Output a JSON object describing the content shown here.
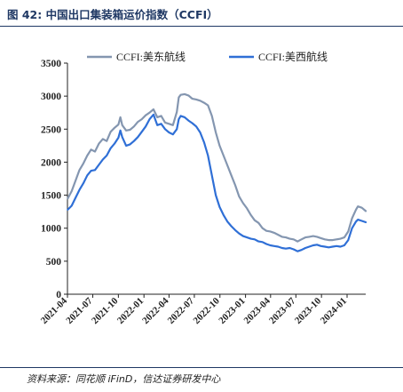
{
  "figure": {
    "title": "图 42:  中国出口集装箱运价指数（CCFI）",
    "source": "资料来源：同花顺 iFinD，信达证券研发中心"
  },
  "chart_data": {
    "type": "line",
    "title": "",
    "xlabel": "",
    "ylabel": "",
    "ylim": [
      0,
      3500
    ],
    "yticks": [
      0,
      500,
      1000,
      1500,
      2000,
      2500,
      3000,
      3500
    ],
    "xlim": [
      "2021-04-01",
      "2024-03-08"
    ],
    "xtick_labels": [
      "2021-04",
      "2021-07",
      "2021-10",
      "2022-01",
      "2022-04",
      "2022-07",
      "2022-10",
      "2023-01",
      "2023-04",
      "2023-07",
      "2023-10",
      "2024-01"
    ],
    "grid": false,
    "legend_position": "top",
    "series": [
      {
        "name": "CCFI:美东航线",
        "color": "#8496b0",
        "points": [
          [
            "2021-04-02",
            1450
          ],
          [
            "2021-04-16",
            1560
          ],
          [
            "2021-04-30",
            1720
          ],
          [
            "2021-05-14",
            1880
          ],
          [
            "2021-05-28",
            1980
          ],
          [
            "2021-06-11",
            2100
          ],
          [
            "2021-06-25",
            2190
          ],
          [
            "2021-07-09",
            2160
          ],
          [
            "2021-07-23",
            2280
          ],
          [
            "2021-08-06",
            2350
          ],
          [
            "2021-08-20",
            2320
          ],
          [
            "2021-09-03",
            2460
          ],
          [
            "2021-09-17",
            2520
          ],
          [
            "2021-10-01",
            2570
          ],
          [
            "2021-10-08",
            2680
          ],
          [
            "2021-10-15",
            2560
          ],
          [
            "2021-10-29",
            2480
          ],
          [
            "2021-11-12",
            2490
          ],
          [
            "2021-11-26",
            2540
          ],
          [
            "2021-12-10",
            2610
          ],
          [
            "2021-12-24",
            2650
          ],
          [
            "2022-01-07",
            2710
          ],
          [
            "2022-01-21",
            2750
          ],
          [
            "2022-02-04",
            2800
          ],
          [
            "2022-02-18",
            2680
          ],
          [
            "2022-03-04",
            2700
          ],
          [
            "2022-03-18",
            2600
          ],
          [
            "2022-04-01",
            2580
          ],
          [
            "2022-04-15",
            2560
          ],
          [
            "2022-04-29",
            2760
          ],
          [
            "2022-05-06",
            2980
          ],
          [
            "2022-05-13",
            3020
          ],
          [
            "2022-05-27",
            3030
          ],
          [
            "2022-06-10",
            3010
          ],
          [
            "2022-06-24",
            2960
          ],
          [
            "2022-07-08",
            2950
          ],
          [
            "2022-07-22",
            2930
          ],
          [
            "2022-08-05",
            2900
          ],
          [
            "2022-08-19",
            2860
          ],
          [
            "2022-09-02",
            2700
          ],
          [
            "2022-09-16",
            2450
          ],
          [
            "2022-09-30",
            2250
          ],
          [
            "2022-10-14",
            2100
          ],
          [
            "2022-10-28",
            1950
          ],
          [
            "2022-11-11",
            1800
          ],
          [
            "2022-11-25",
            1650
          ],
          [
            "2022-12-09",
            1480
          ],
          [
            "2022-12-23",
            1380
          ],
          [
            "2023-01-06",
            1300
          ],
          [
            "2023-01-20",
            1200
          ],
          [
            "2023-02-03",
            1120
          ],
          [
            "2023-02-17",
            1080
          ],
          [
            "2023-03-03",
            1000
          ],
          [
            "2023-03-17",
            960
          ],
          [
            "2023-03-31",
            950
          ],
          [
            "2023-04-14",
            930
          ],
          [
            "2023-04-28",
            900
          ],
          [
            "2023-05-12",
            870
          ],
          [
            "2023-05-26",
            860
          ],
          [
            "2023-06-09",
            840
          ],
          [
            "2023-06-23",
            830
          ],
          [
            "2023-07-07",
            800
          ],
          [
            "2023-07-21",
            830
          ],
          [
            "2023-08-04",
            860
          ],
          [
            "2023-08-18",
            870
          ],
          [
            "2023-09-01",
            880
          ],
          [
            "2023-09-15",
            870
          ],
          [
            "2023-09-29",
            850
          ],
          [
            "2023-10-13",
            830
          ],
          [
            "2023-10-27",
            820
          ],
          [
            "2023-11-10",
            820
          ],
          [
            "2023-11-24",
            830
          ],
          [
            "2023-12-08",
            840
          ],
          [
            "2023-12-22",
            860
          ],
          [
            "2024-01-05",
            950
          ],
          [
            "2024-01-19",
            1150
          ],
          [
            "2024-02-02",
            1280
          ],
          [
            "2024-02-09",
            1330
          ],
          [
            "2024-02-23",
            1310
          ],
          [
            "2024-03-08",
            1260
          ]
        ]
      },
      {
        "name": "CCFI:美西航线",
        "color": "#2f6fd6",
        "points": [
          [
            "2021-04-02",
            1280
          ],
          [
            "2021-04-16",
            1340
          ],
          [
            "2021-04-30",
            1460
          ],
          [
            "2021-05-14",
            1580
          ],
          [
            "2021-05-28",
            1680
          ],
          [
            "2021-06-11",
            1800
          ],
          [
            "2021-06-25",
            1870
          ],
          [
            "2021-07-09",
            1880
          ],
          [
            "2021-07-23",
            1960
          ],
          [
            "2021-08-06",
            2040
          ],
          [
            "2021-08-20",
            2100
          ],
          [
            "2021-09-03",
            2210
          ],
          [
            "2021-09-17",
            2280
          ],
          [
            "2021-10-01",
            2370
          ],
          [
            "2021-10-08",
            2480
          ],
          [
            "2021-10-15",
            2380
          ],
          [
            "2021-10-29",
            2250
          ],
          [
            "2021-11-12",
            2270
          ],
          [
            "2021-11-26",
            2320
          ],
          [
            "2021-12-10",
            2380
          ],
          [
            "2021-12-24",
            2460
          ],
          [
            "2022-01-07",
            2540
          ],
          [
            "2022-01-21",
            2650
          ],
          [
            "2022-02-04",
            2720
          ],
          [
            "2022-02-18",
            2560
          ],
          [
            "2022-03-04",
            2580
          ],
          [
            "2022-03-18",
            2500
          ],
          [
            "2022-04-01",
            2450
          ],
          [
            "2022-04-15",
            2420
          ],
          [
            "2022-04-29",
            2500
          ],
          [
            "2022-05-06",
            2650
          ],
          [
            "2022-05-13",
            2700
          ],
          [
            "2022-05-27",
            2680
          ],
          [
            "2022-06-10",
            2630
          ],
          [
            "2022-06-24",
            2590
          ],
          [
            "2022-07-08",
            2540
          ],
          [
            "2022-07-22",
            2450
          ],
          [
            "2022-08-05",
            2300
          ],
          [
            "2022-08-19",
            2100
          ],
          [
            "2022-09-02",
            1800
          ],
          [
            "2022-09-16",
            1500
          ],
          [
            "2022-09-30",
            1320
          ],
          [
            "2022-10-14",
            1200
          ],
          [
            "2022-10-28",
            1100
          ],
          [
            "2022-11-11",
            1030
          ],
          [
            "2022-11-25",
            970
          ],
          [
            "2022-12-09",
            920
          ],
          [
            "2022-12-23",
            880
          ],
          [
            "2023-01-06",
            860
          ],
          [
            "2023-01-20",
            840
          ],
          [
            "2023-02-03",
            830
          ],
          [
            "2023-02-17",
            800
          ],
          [
            "2023-03-03",
            790
          ],
          [
            "2023-03-17",
            760
          ],
          [
            "2023-03-31",
            740
          ],
          [
            "2023-04-14",
            730
          ],
          [
            "2023-04-28",
            720
          ],
          [
            "2023-05-12",
            700
          ],
          [
            "2023-05-26",
            690
          ],
          [
            "2023-06-09",
            700
          ],
          [
            "2023-06-23",
            680
          ],
          [
            "2023-07-07",
            650
          ],
          [
            "2023-07-21",
            670
          ],
          [
            "2023-08-04",
            700
          ],
          [
            "2023-08-18",
            720
          ],
          [
            "2023-09-01",
            740
          ],
          [
            "2023-09-15",
            750
          ],
          [
            "2023-09-29",
            730
          ],
          [
            "2023-10-13",
            720
          ],
          [
            "2023-10-27",
            710
          ],
          [
            "2023-11-10",
            720
          ],
          [
            "2023-11-24",
            730
          ],
          [
            "2023-12-08",
            720
          ],
          [
            "2023-12-22",
            740
          ],
          [
            "2024-01-05",
            820
          ],
          [
            "2024-01-19",
            1000
          ],
          [
            "2024-02-02",
            1100
          ],
          [
            "2024-02-09",
            1130
          ],
          [
            "2024-02-23",
            1110
          ],
          [
            "2024-03-08",
            1090
          ]
        ]
      }
    ]
  }
}
